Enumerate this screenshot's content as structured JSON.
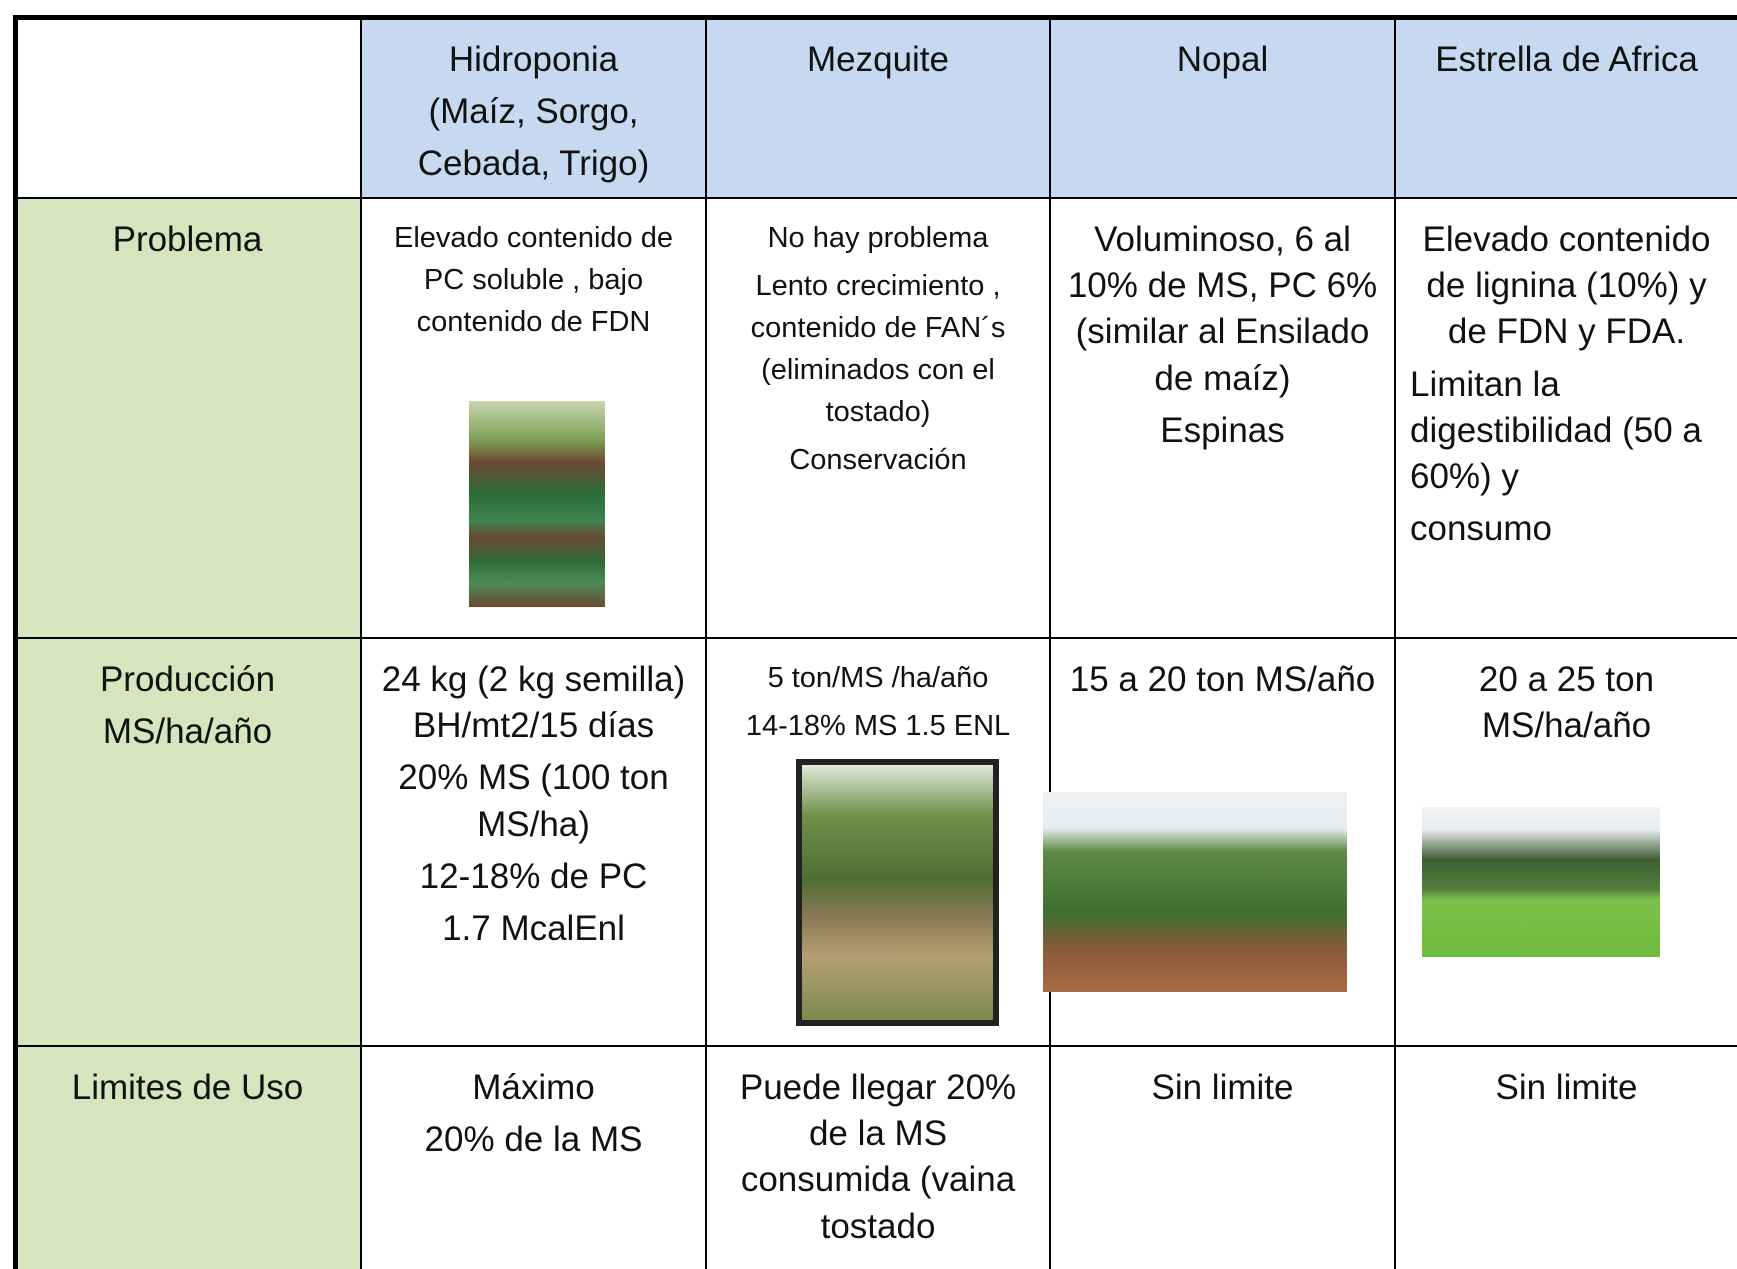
{
  "table": {
    "header": [
      [
        "Hidroponia",
        "(Maíz, Sorgo,",
        "Cebada, Trigo)"
      ],
      [
        "Mezquite"
      ],
      [
        "Nopal"
      ],
      [
        "Estrella de Africa"
      ]
    ],
    "rows": [
      {
        "label": [
          "Problema"
        ],
        "cells": [
          [
            "Elevado contenido de PC soluble , bajo contenido de FDN"
          ],
          [
            "No hay problema",
            "Lento crecimiento , contenido de FAN´s (eliminados con el tostado)",
            "Conservación"
          ],
          [
            "Voluminoso, 6 al 10% de MS, PC 6% (similar al Ensilado de maíz)",
            "Espinas"
          ],
          [
            "Elevado contenido de lignina (10%) y de FDN y FDA.",
            "Limitan la digestibilidad (50 a 60%) y",
            "consumo"
          ]
        ]
      },
      {
        "label": [
          "Producción",
          "MS/ha/año"
        ],
        "cells": [
          [
            "24 kg (2 kg semilla) BH/mt2/15 días",
            "20% MS (100 ton MS/ha)",
            "12-18% de PC",
            "1.7 McalEnl"
          ],
          [
            "5 ton/MS /ha/año",
            "14-18% MS 1.5 ENL"
          ],
          [
            "15 a 20 ton MS/año"
          ],
          [
            "20 a 25 ton MS/ha/año"
          ]
        ]
      },
      {
        "label": [
          "Limites de Uso"
        ],
        "cells": [
          [
            "Máximo",
            "20% de la MS"
          ],
          [
            "Puede llegar 20% de la MS consumida (vaina tostado"
          ],
          [
            "Sin limite"
          ],
          [
            "Sin limite"
          ]
        ]
      }
    ]
  }
}
